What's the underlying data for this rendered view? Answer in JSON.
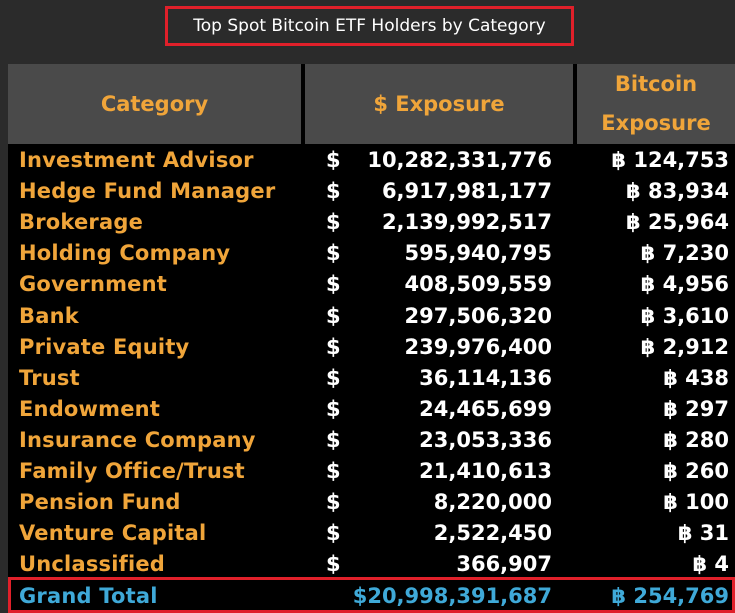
{
  "title": "Top Spot Bitcoin ETF Holders by Category",
  "colors": {
    "header_text": "#f0a53a",
    "category_text": "#f0a53a",
    "value_text": "#ffffff",
    "total_text": "#3fa9d8",
    "highlight_border": "#e0202a"
  },
  "chart_data": {
    "type": "table",
    "title": "Top Spot Bitcoin ETF Holders by Category",
    "columns": [
      "Category",
      "$ Exposure",
      "Bitcoin Exposure"
    ],
    "header": {
      "category": "Category",
      "usd": "$ Exposure",
      "btc_line1": "Bitcoin",
      "btc_line2": "Exposure"
    },
    "rows": [
      {
        "category": "Investment Advisor",
        "usd_sign": "$",
        "usd": "10,282,331,776",
        "btc": "฿ 124,753"
      },
      {
        "category": "Hedge Fund Manager",
        "usd_sign": "$",
        "usd": "6,917,981,177",
        "btc": "฿ 83,934"
      },
      {
        "category": "Brokerage",
        "usd_sign": "$",
        "usd": "2,139,992,517",
        "btc": "฿ 25,964"
      },
      {
        "category": "Holding Company",
        "usd_sign": "$",
        "usd": "595,940,795",
        "btc": "฿ 7,230"
      },
      {
        "category": "Government",
        "usd_sign": "$",
        "usd": "408,509,559",
        "btc": "฿ 4,956"
      },
      {
        "category": "Bank",
        "usd_sign": "$",
        "usd": "297,506,320",
        "btc": "฿ 3,610"
      },
      {
        "category": "Private Equity",
        "usd_sign": "$",
        "usd": "239,976,400",
        "btc": "฿ 2,912"
      },
      {
        "category": "Trust",
        "usd_sign": "$",
        "usd": "36,114,136",
        "btc": "฿ 438"
      },
      {
        "category": "Endowment",
        "usd_sign": "$",
        "usd": "24,465,699",
        "btc": "฿ 297"
      },
      {
        "category": "Insurance Company",
        "usd_sign": "$",
        "usd": "23,053,336",
        "btc": "฿ 280"
      },
      {
        "category": "Family Office/Trust",
        "usd_sign": "$",
        "usd": "21,410,613",
        "btc": "฿ 260"
      },
      {
        "category": "Pension Fund",
        "usd_sign": "$",
        "usd": "8,220,000",
        "btc": "฿ 100"
      },
      {
        "category": "Venture Capital",
        "usd_sign": "$",
        "usd": "2,522,450",
        "btc": "฿ 31"
      },
      {
        "category": "Unclassified",
        "usd_sign": "$",
        "usd": "366,907",
        "btc": "฿ 4"
      }
    ],
    "total": {
      "category": "Grand Total",
      "usd": "$20,998,391,687",
      "btc": "฿ 254,769"
    }
  }
}
